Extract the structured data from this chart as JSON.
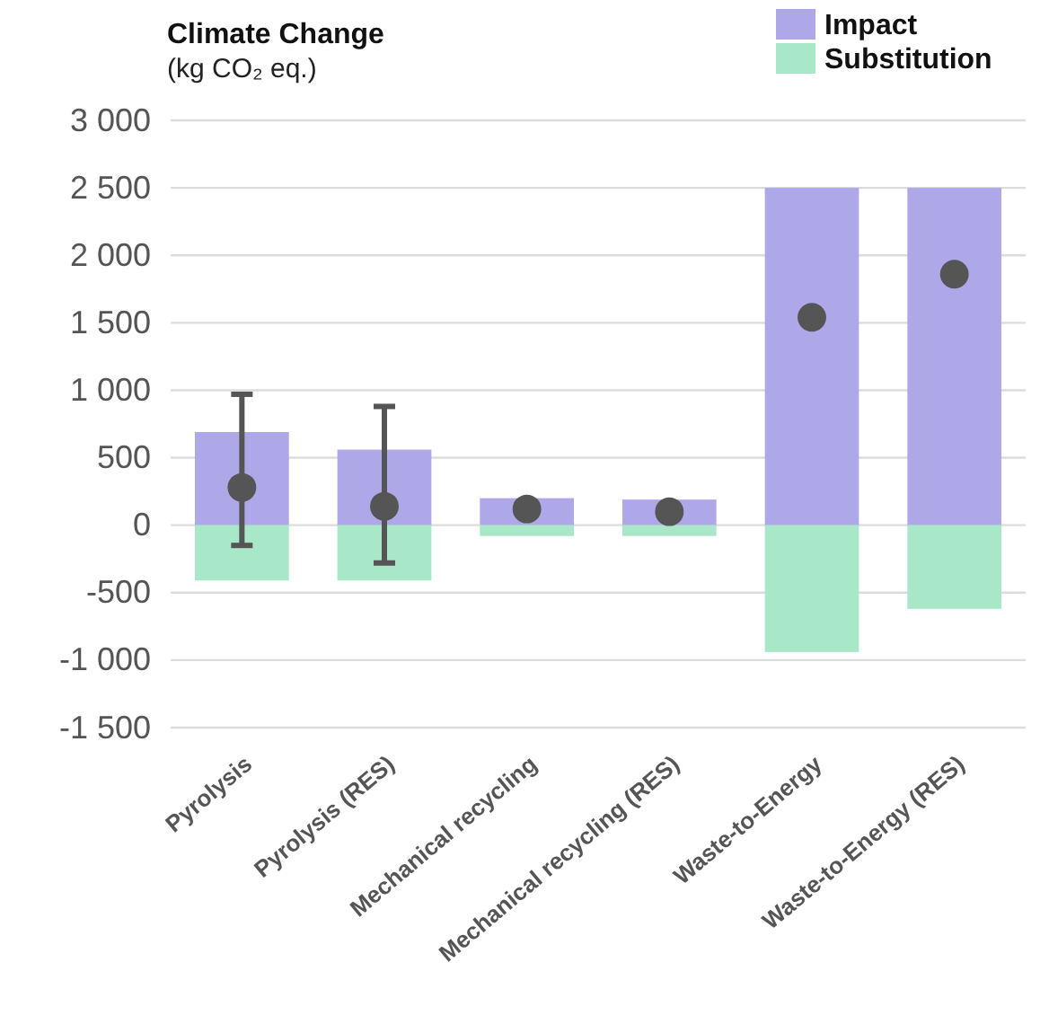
{
  "chart_data": {
    "type": "bar",
    "title": "Climate Change",
    "subtitle": "(kg CO₂ eq.)",
    "categories": [
      "Pyrolysis",
      "Pyrolysis (RES)",
      "Mechanical recycling",
      "Mechanical recycling (RES)",
      "Waste-to-Energy",
      "Waste-to-Energy (RES)"
    ],
    "stacked": true,
    "series": [
      {
        "name": "Impact",
        "color": "#afa8e8",
        "values": [
          690,
          560,
          200,
          190,
          2500,
          2500
        ]
      },
      {
        "name": "Substitution",
        "color": "#a8e8c8",
        "values": [
          -410,
          -410,
          -80,
          -80,
          -940,
          -620
        ]
      },
      {
        "type": "scatter",
        "color": "#555555",
        "x": [
          "Pyrolysis",
          "Pyrolysis (RES)",
          "Mechanical recycling",
          "Mechanical recycling (RES)",
          "Waste-to-Energy",
          "Waste-to-Energy (RES)"
        ],
        "values": [
          280,
          140,
          120,
          100,
          1540,
          1860
        ],
        "errors": [
          [
            -150,
            970
          ],
          [
            -280,
            880
          ],
          null,
          null,
          null,
          null
        ]
      }
    ],
    "marker": "circle",
    "ylim": [
      -1500,
      3000
    ],
    "yticks": [
      {
        "value": -1500,
        "label": "-1 500"
      },
      {
        "value": -1000,
        "label": "-1 000"
      },
      -500,
      0,
      500,
      {
        "value": 1000,
        "label": "1 000"
      },
      {
        "value": 1500,
        "label": "1 500"
      },
      {
        "value": 2000,
        "label": "2 000"
      },
      {
        "value": 2500,
        "label": "2 500"
      },
      {
        "value": 3000,
        "label": "3 000"
      }
    ],
    "grid": "y",
    "legend": "top right"
  }
}
